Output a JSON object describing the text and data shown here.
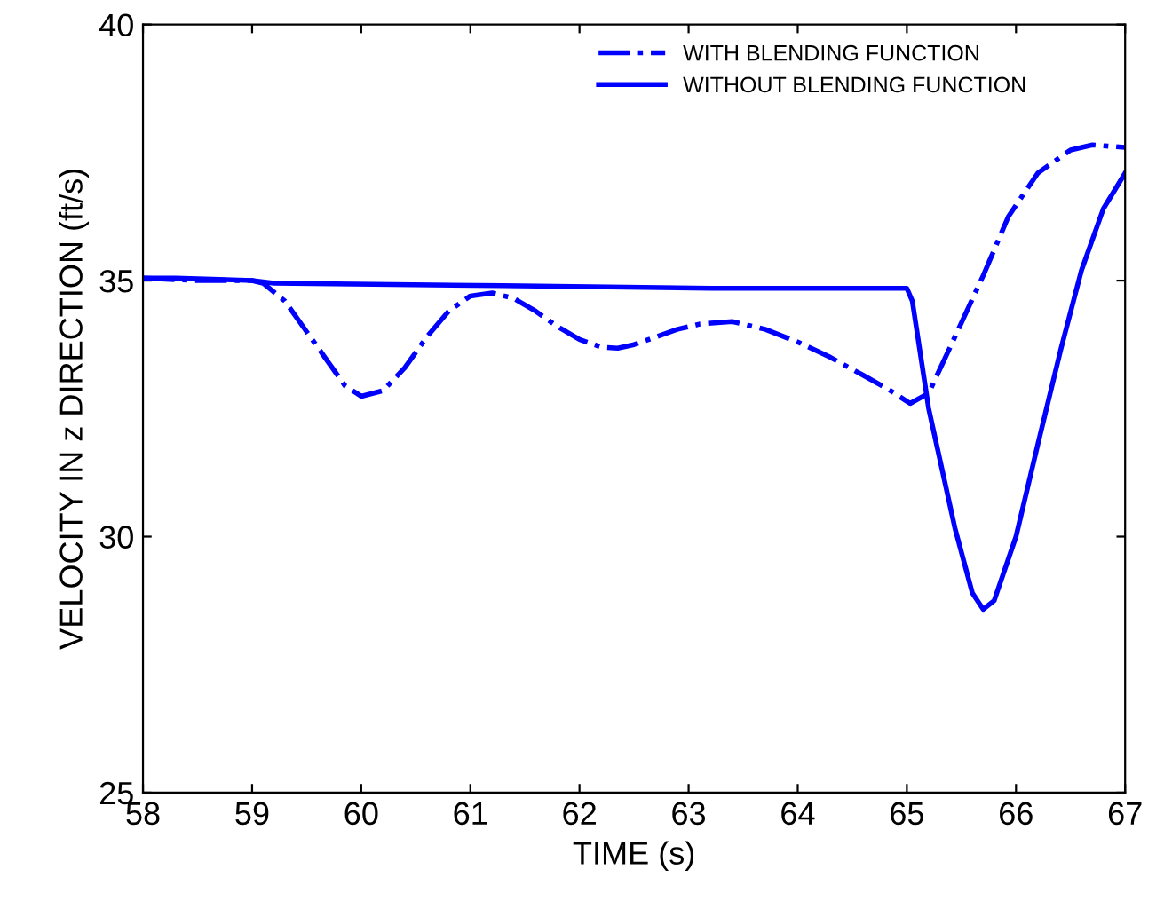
{
  "chart_data": {
    "type": "line",
    "xlabel": "TIME (s)",
    "ylabel": "VELOCITY IN z DIRECTION (ft/s)",
    "xlim": [
      58,
      67
    ],
    "ylim": [
      25,
      40
    ],
    "xticks": [
      58,
      59,
      60,
      61,
      62,
      63,
      64,
      65,
      66,
      67
    ],
    "yticks": [
      25,
      30,
      35,
      40
    ],
    "grid": false,
    "legend": "top right",
    "series": [
      {
        "name": "WITH BLENDING FUNCTION",
        "color": "#0000ff",
        "line_style": "dashdot",
        "x": [
          58,
          58.5,
          59.0,
          59.1,
          59.3,
          59.5,
          59.7,
          59.85,
          60.0,
          60.2,
          60.4,
          60.6,
          60.8,
          61.0,
          61.2,
          61.4,
          61.6,
          61.8,
          62.0,
          62.2,
          62.35,
          62.5,
          62.7,
          62.9,
          63.1,
          63.4,
          63.7,
          64.0,
          64.3,
          64.6,
          64.85,
          65.03,
          65.2,
          65.44,
          65.7,
          65.93,
          66.2,
          66.5,
          66.7,
          67
        ],
        "values": [
          35.05,
          35.0,
          35.0,
          34.95,
          34.6,
          34.0,
          33.4,
          32.95,
          32.74,
          32.85,
          33.3,
          33.9,
          34.4,
          34.7,
          34.76,
          34.65,
          34.4,
          34.1,
          33.85,
          33.7,
          33.68,
          33.75,
          33.9,
          34.05,
          34.15,
          34.2,
          34.05,
          33.8,
          33.5,
          33.15,
          32.85,
          32.6,
          32.8,
          33.9,
          35.1,
          36.25,
          37.1,
          37.55,
          37.65,
          37.6
        ]
      },
      {
        "name": "WITHOUT BLENDING FUNCTION",
        "color": "#0000ff",
        "line_style": "solid",
        "x": [
          58,
          58.3,
          59.0,
          59.2,
          61.3,
          63.2,
          65.0,
          65.05,
          65.2,
          65.44,
          65.6,
          65.7,
          65.8,
          66.0,
          66.2,
          66.41,
          66.6,
          66.8,
          67
        ],
        "values": [
          35.05,
          35.05,
          35.0,
          34.95,
          34.9,
          34.85,
          34.85,
          34.6,
          32.5,
          30.17,
          28.9,
          28.58,
          28.75,
          30.0,
          31.8,
          33.65,
          35.2,
          36.4,
          37.1
        ]
      }
    ]
  }
}
